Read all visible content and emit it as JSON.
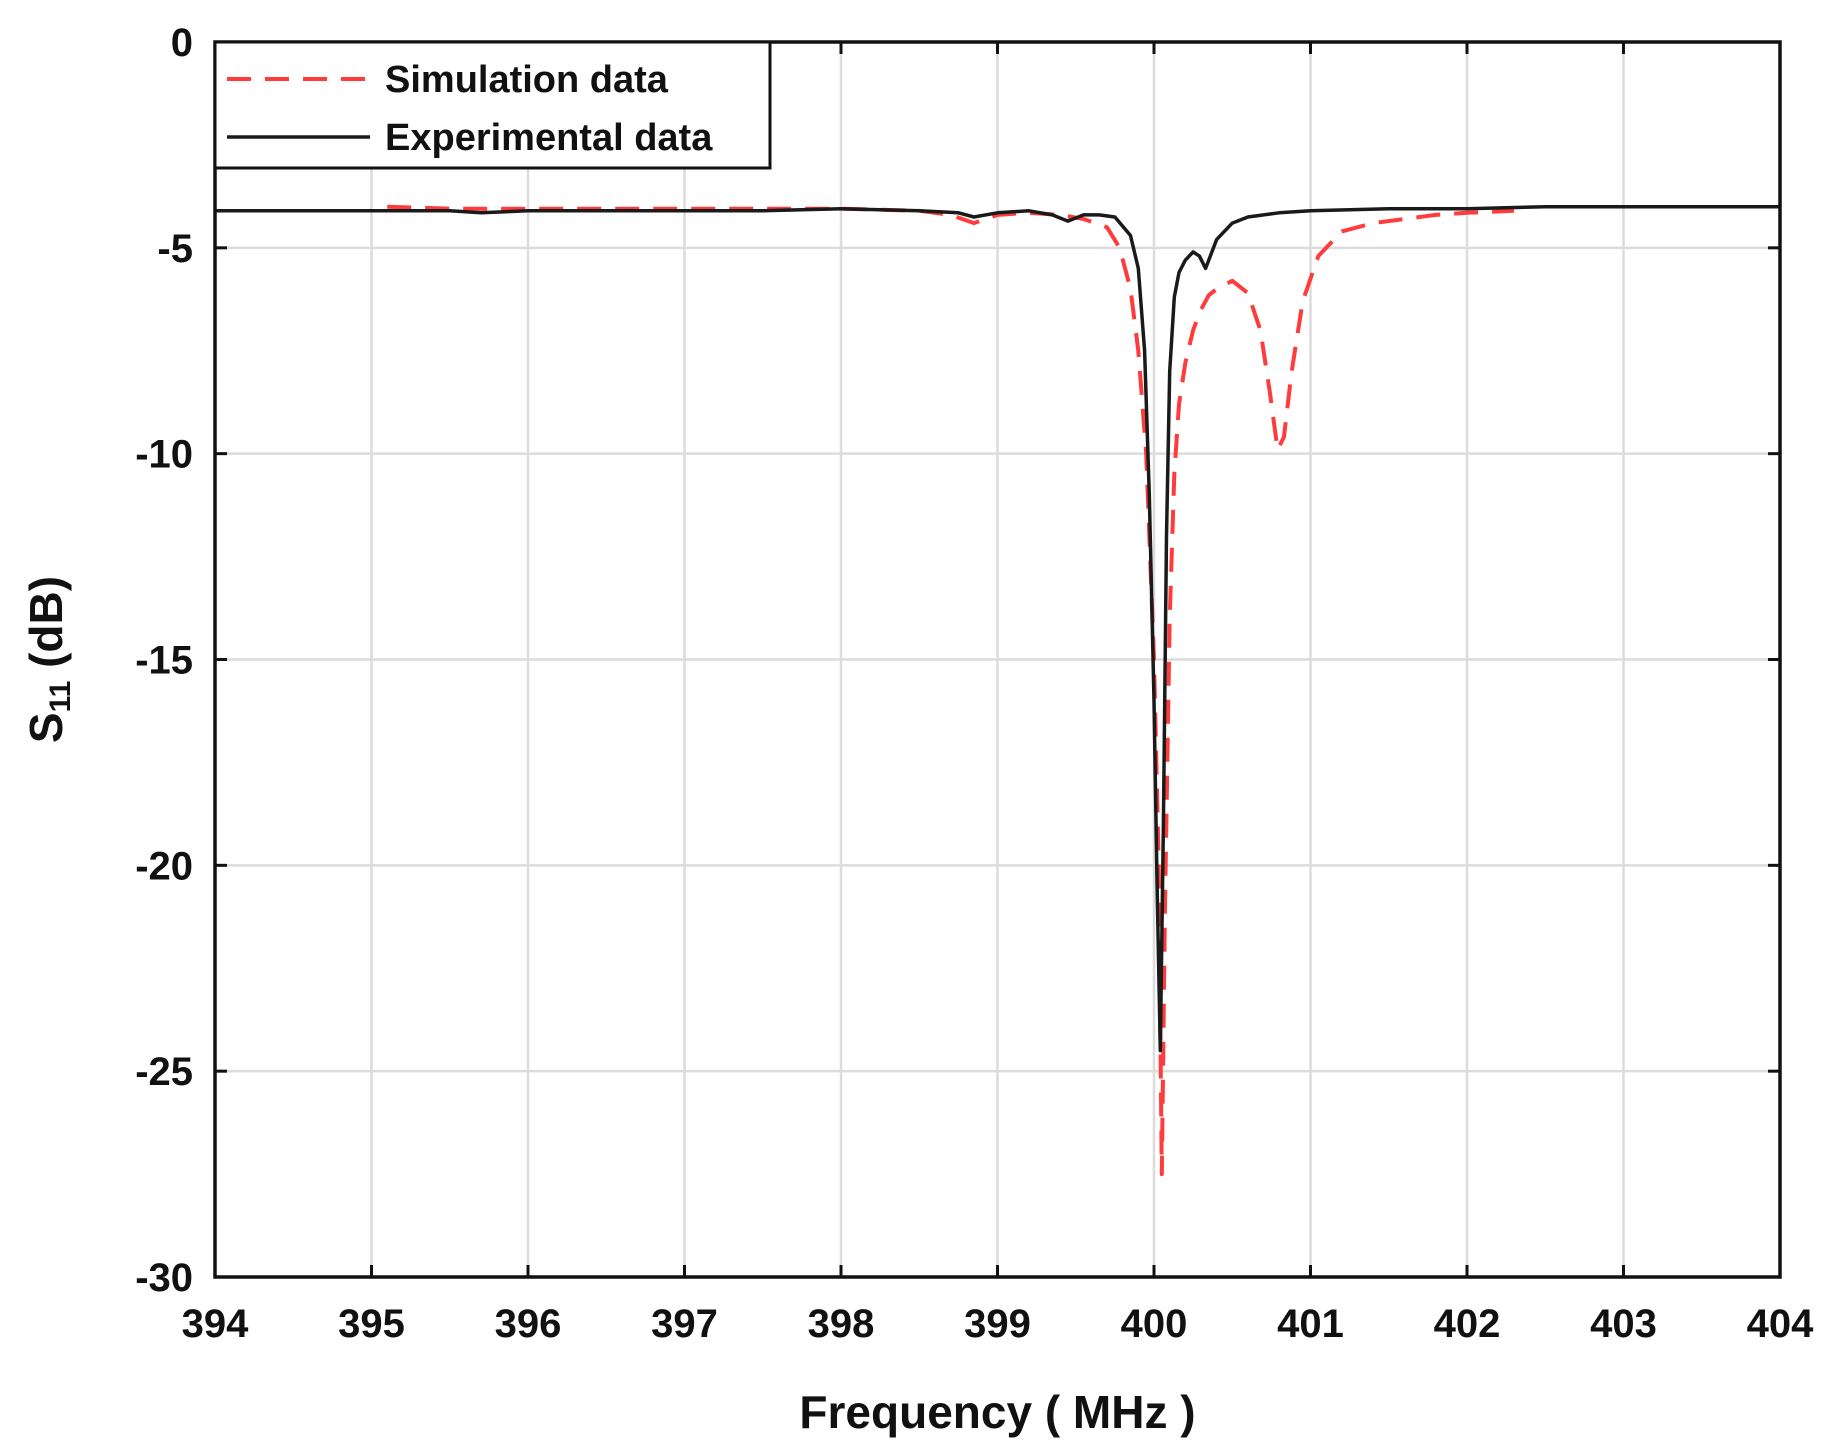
{
  "chart_data": {
    "type": "line",
    "title": "",
    "xlabel": "Frequency ( MHz )",
    "ylabel_main": "S",
    "ylabel_sub": "11",
    "ylabel_unit": " (dB)",
    "xlim": [
      394,
      404
    ],
    "ylim": [
      -30,
      0
    ],
    "xticks": [
      394,
      395,
      396,
      397,
      398,
      399,
      400,
      401,
      402,
      403,
      404
    ],
    "yticks": [
      0,
      -5,
      -10,
      -15,
      -20,
      -25,
      -30
    ],
    "grid": true,
    "legend_position": "top-left",
    "colors": {
      "simulation": "#ff3b3b",
      "experimental": "#1a1a1a",
      "grid": "#dcdcdc",
      "frame": "#111111"
    },
    "series": [
      {
        "name": "Simulation data",
        "style": "dashed",
        "x": [
          395.1,
          395.5,
          396.0,
          396.5,
          397.0,
          397.5,
          398.0,
          398.5,
          398.7,
          398.85,
          399.0,
          399.2,
          399.4,
          399.55,
          399.7,
          399.78,
          399.85,
          399.9,
          399.95,
          400.0,
          400.03,
          400.05,
          400.07,
          400.1,
          400.13,
          400.16,
          400.2,
          400.25,
          400.3,
          400.35,
          400.4,
          400.5,
          400.6,
          400.68,
          400.74,
          400.79,
          400.83,
          400.88,
          400.95,
          401.05,
          401.2,
          401.4,
          401.6,
          401.8,
          402.0,
          402.3
        ],
        "y": [
          -4.0,
          -4.05,
          -4.05,
          -4.05,
          -4.05,
          -4.05,
          -4.05,
          -4.1,
          -4.2,
          -4.4,
          -4.2,
          -4.15,
          -4.2,
          -4.3,
          -4.5,
          -5.0,
          -6.0,
          -7.5,
          -10.0,
          -15.0,
          -20.0,
          -27.5,
          -21.0,
          -14.0,
          -10.5,
          -8.8,
          -7.8,
          -7.0,
          -6.5,
          -6.15,
          -6.0,
          -5.8,
          -6.1,
          -7.0,
          -8.5,
          -9.9,
          -9.6,
          -8.0,
          -6.3,
          -5.2,
          -4.6,
          -4.4,
          -4.3,
          -4.2,
          -4.15,
          -4.1
        ]
      },
      {
        "name": "Experimental data",
        "style": "solid",
        "x": [
          394.0,
          394.5,
          395.0,
          395.5,
          395.7,
          396.0,
          396.5,
          397.0,
          397.5,
          398.0,
          398.5,
          398.75,
          398.85,
          399.0,
          399.2,
          399.35,
          399.45,
          399.55,
          399.65,
          399.75,
          399.85,
          399.9,
          399.94,
          399.97,
          400.0,
          400.02,
          400.04,
          400.06,
          400.08,
          400.1,
          400.13,
          400.16,
          400.2,
          400.25,
          400.29,
          400.33,
          400.36,
          400.4,
          400.5,
          400.6,
          400.8,
          401.0,
          401.5,
          402.0,
          402.5,
          403.0,
          403.5,
          404.0
        ],
        "y": [
          -4.1,
          -4.1,
          -4.1,
          -4.1,
          -4.15,
          -4.1,
          -4.1,
          -4.1,
          -4.1,
          -4.05,
          -4.1,
          -4.15,
          -4.25,
          -4.15,
          -4.1,
          -4.2,
          -4.35,
          -4.2,
          -4.2,
          -4.25,
          -4.7,
          -5.5,
          -7.5,
          -11.0,
          -16.0,
          -20.5,
          -24.5,
          -19.0,
          -12.0,
          -8.0,
          -6.2,
          -5.6,
          -5.3,
          -5.1,
          -5.2,
          -5.5,
          -5.2,
          -4.8,
          -4.4,
          -4.25,
          -4.15,
          -4.1,
          -4.05,
          -4.05,
          -4.0,
          -4.0,
          -4.0,
          -4.0
        ]
      }
    ]
  }
}
